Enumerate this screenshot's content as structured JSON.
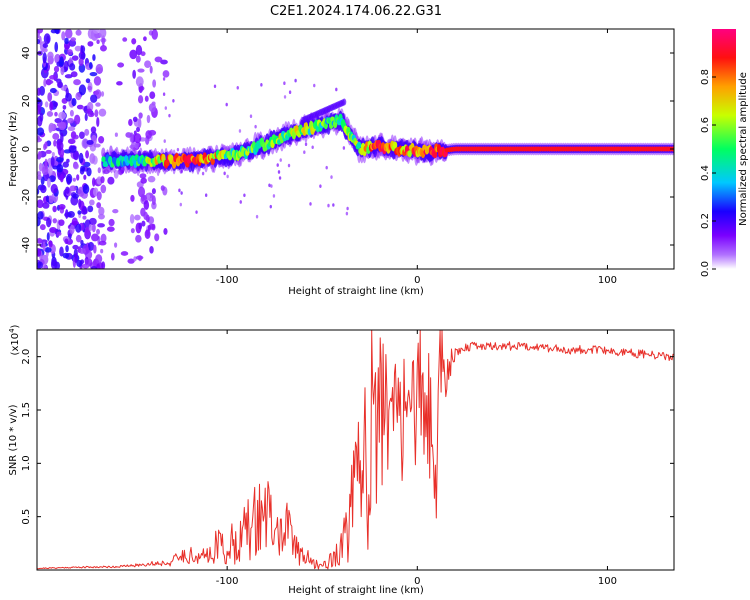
{
  "title": "C2E1.2024.174.06.22.G31",
  "chart_data": [
    {
      "type": "heatmap",
      "xlabel": "Height of straight line (km)",
      "ylabel": "Frequency (Hz)",
      "xlim": [
        -200,
        135
      ],
      "ylim": [
        -50,
        50
      ],
      "x_ticks": [
        -100,
        0,
        100
      ],
      "y_ticks": [
        -40,
        -20,
        0,
        20,
        40
      ],
      "colorbar": {
        "label": "Normalized spectral amplitude",
        "range": [
          0.0,
          1.0
        ],
        "ticks": [
          0.0,
          0.2,
          0.4,
          0.6,
          0.8
        ],
        "colors": [
          "#ffffff",
          "#8c00ff",
          "#0000ff",
          "#00ffff",
          "#00ff00",
          "#ffff00",
          "#ff8000",
          "#ff0000",
          "#ff0080"
        ]
      },
      "ridge": {
        "x": [
          -165,
          -150,
          -140,
          -130,
          -120,
          -110,
          -100,
          -90,
          -80,
          -70,
          -60,
          -50,
          -40,
          -35,
          -30,
          -20,
          -10,
          0,
          10,
          20,
          40,
          60,
          80,
          100,
          120,
          135
        ],
        "y": [
          -5,
          -5,
          -5,
          -5,
          -5,
          -4,
          -3,
          -1,
          2,
          5,
          8,
          10,
          12,
          5,
          0,
          1,
          0,
          -1,
          -1,
          0,
          0,
          0,
          0,
          0,
          0,
          0
        ],
        "amplitude": [
          0.4,
          0.45,
          0.55,
          0.8,
          0.85,
          0.8,
          0.5,
          0.5,
          0.55,
          0.55,
          0.6,
          0.45,
          0.5,
          0.5,
          0.55,
          0.85,
          0.75,
          0.8,
          0.85,
          0.9,
          0.9,
          0.9,
          0.9,
          0.9,
          0.9,
          0.9
        ]
      }
    },
    {
      "type": "line",
      "xlabel": "Height of straight line (km)",
      "ylabel": "SNR (10 * v/v)",
      "y_scale_label": "(x10",
      "y_scale_exp": "4",
      "xlim": [
        -200,
        135
      ],
      "ylim": [
        0,
        22500
      ],
      "x_ticks": [
        -100,
        0,
        100
      ],
      "y_ticks": [
        5000,
        10000,
        15000,
        20000
      ],
      "y_tick_labels": [
        "0.5",
        "1.0",
        "1.5",
        "2.0"
      ],
      "series": [
        {
          "color": "#e8302a",
          "x": [
            -200,
            -180,
            -160,
            -150,
            -140,
            -130,
            -125,
            -120,
            -115,
            -110,
            -105,
            -100,
            -95,
            -90,
            -85,
            -80,
            -75,
            -70,
            -65,
            -60,
            -55,
            -50,
            -45,
            -40,
            -37,
            -35,
            -32,
            -30,
            -28,
            -26,
            -25,
            -23,
            -20,
            -18,
            -15,
            -13,
            -10,
            -8,
            -5,
            -3,
            0,
            3,
            5,
            8,
            10,
            12,
            14,
            16,
            20,
            25,
            30,
            40,
            50,
            60,
            70,
            80,
            90,
            100,
            110,
            120,
            130,
            135
          ],
          "y": [
            150,
            250,
            300,
            400,
            600,
            700,
            1200,
            1500,
            1000,
            1500,
            2500,
            1800,
            3000,
            3500,
            4500,
            6000,
            3000,
            4000,
            2500,
            1500,
            600,
            400,
            1000,
            1800,
            4000,
            5000,
            7000,
            8000,
            11000,
            13000,
            21500,
            9000,
            15000,
            16000,
            13000,
            15000,
            14000,
            16000,
            16500,
            15000,
            17000,
            15500,
            16000,
            12000,
            7000,
            22000,
            18000,
            19000,
            20500,
            20800,
            21000,
            21000,
            21000,
            21000,
            20800,
            20600,
            20700,
            20500,
            20400,
            20200,
            20000,
            20000
          ],
          "noise": [
            0.3,
            0.3,
            0.3,
            0.3,
            0.4,
            0.5,
            0.6,
            0.6,
            0.6,
            0.7,
            0.7,
            0.8,
            0.8,
            0.8,
            0.8,
            0.8,
            0.8,
            0.8,
            0.8,
            0.8,
            0.8,
            0.8,
            0.9,
            0.9,
            0.9,
            0.9,
            0.9,
            0.9,
            0.9,
            0.9,
            0.9,
            0.8,
            0.5,
            0.5,
            0.5,
            0.5,
            0.5,
            0.5,
            0.4,
            0.4,
            0.4,
            0.4,
            0.4,
            0.4,
            0.4,
            0.3,
            0.15,
            0.1,
            0.03,
            0.02,
            0.02,
            0.02,
            0.02,
            0.02,
            0.02,
            0.02,
            0.02,
            0.02,
            0.02,
            0.02,
            0.02,
            0.02
          ]
        }
      ]
    }
  ]
}
